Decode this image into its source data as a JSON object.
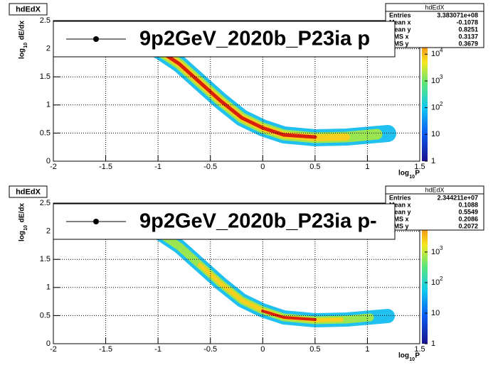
{
  "chart_data": [
    {
      "type": "heatmap",
      "title": "hdEdX",
      "legend": "9p2GeV_2020b_P23ia p",
      "x_label": {
        "main": "log",
        "sub": "10",
        "rest": "P"
      },
      "y_label": {
        "main": "log",
        "sub": "10",
        "rest": "dE/dx"
      },
      "xlim": [
        -2,
        1.5
      ],
      "xticks": [
        -2,
        -1.5,
        -1,
        -0.5,
        0,
        0.5,
        1,
        1.5
      ],
      "ylim": [
        0,
        2.5
      ],
      "yticks": [
        0,
        0.5,
        1,
        1.5,
        2,
        2.5
      ],
      "grid": true,
      "log_z": true,
      "zlim": [
        1,
        180000
      ],
      "zticks": [
        {
          "value": 1,
          "base": "1"
        },
        {
          "value": 10,
          "base": "10"
        },
        {
          "value": 100,
          "base": "10",
          "exp": "2"
        },
        {
          "value": 1000,
          "base": "10",
          "exp": "3"
        },
        {
          "value": 10000,
          "base": "10",
          "exp": "4"
        }
      ],
      "stats": {
        "name": "hdEdX",
        "rows": [
          [
            "Entries",
            "3.383071e+08"
          ],
          [
            "Mean x",
            "-0.1078"
          ],
          [
            "Mean y",
            "0.8251"
          ],
          [
            "RMS x",
            "0.3137"
          ],
          [
            "RMS y",
            "0.3679"
          ]
        ]
      }
    },
    {
      "type": "heatmap",
      "title": "hdEdX",
      "legend": "9p2GeV_2020b_P23ia p-",
      "x_label": {
        "main": "log",
        "sub": "10",
        "rest": "P"
      },
      "y_label": {
        "main": "log",
        "sub": "10",
        "rest": "dE/dx"
      },
      "xlim": [
        -2,
        1.5
      ],
      "xticks": [
        -2,
        -1.5,
        -1,
        -0.5,
        0,
        0.5,
        1,
        1.5
      ],
      "ylim": [
        0,
        2.5
      ],
      "yticks": [
        0,
        0.5,
        1,
        1.5,
        2,
        2.5
      ],
      "grid": true,
      "log_z": true,
      "zlim": [
        1,
        40000
      ],
      "zticks": [
        {
          "value": 1,
          "base": "1"
        },
        {
          "value": 10,
          "base": "10"
        },
        {
          "value": 100,
          "base": "10",
          "exp": "2"
        },
        {
          "value": 1000,
          "base": "10",
          "exp": "3"
        }
      ],
      "stats": {
        "name": "hdEdX",
        "rows": [
          [
            "Entries",
            "2.344211e+07"
          ],
          [
            "Mean x",
            "0.1088"
          ],
          [
            "Mean y",
            "0.5549"
          ],
          [
            "RMS x",
            "0.2086"
          ],
          [
            "RMS y",
            "0.2072"
          ]
        ]
      }
    }
  ]
}
